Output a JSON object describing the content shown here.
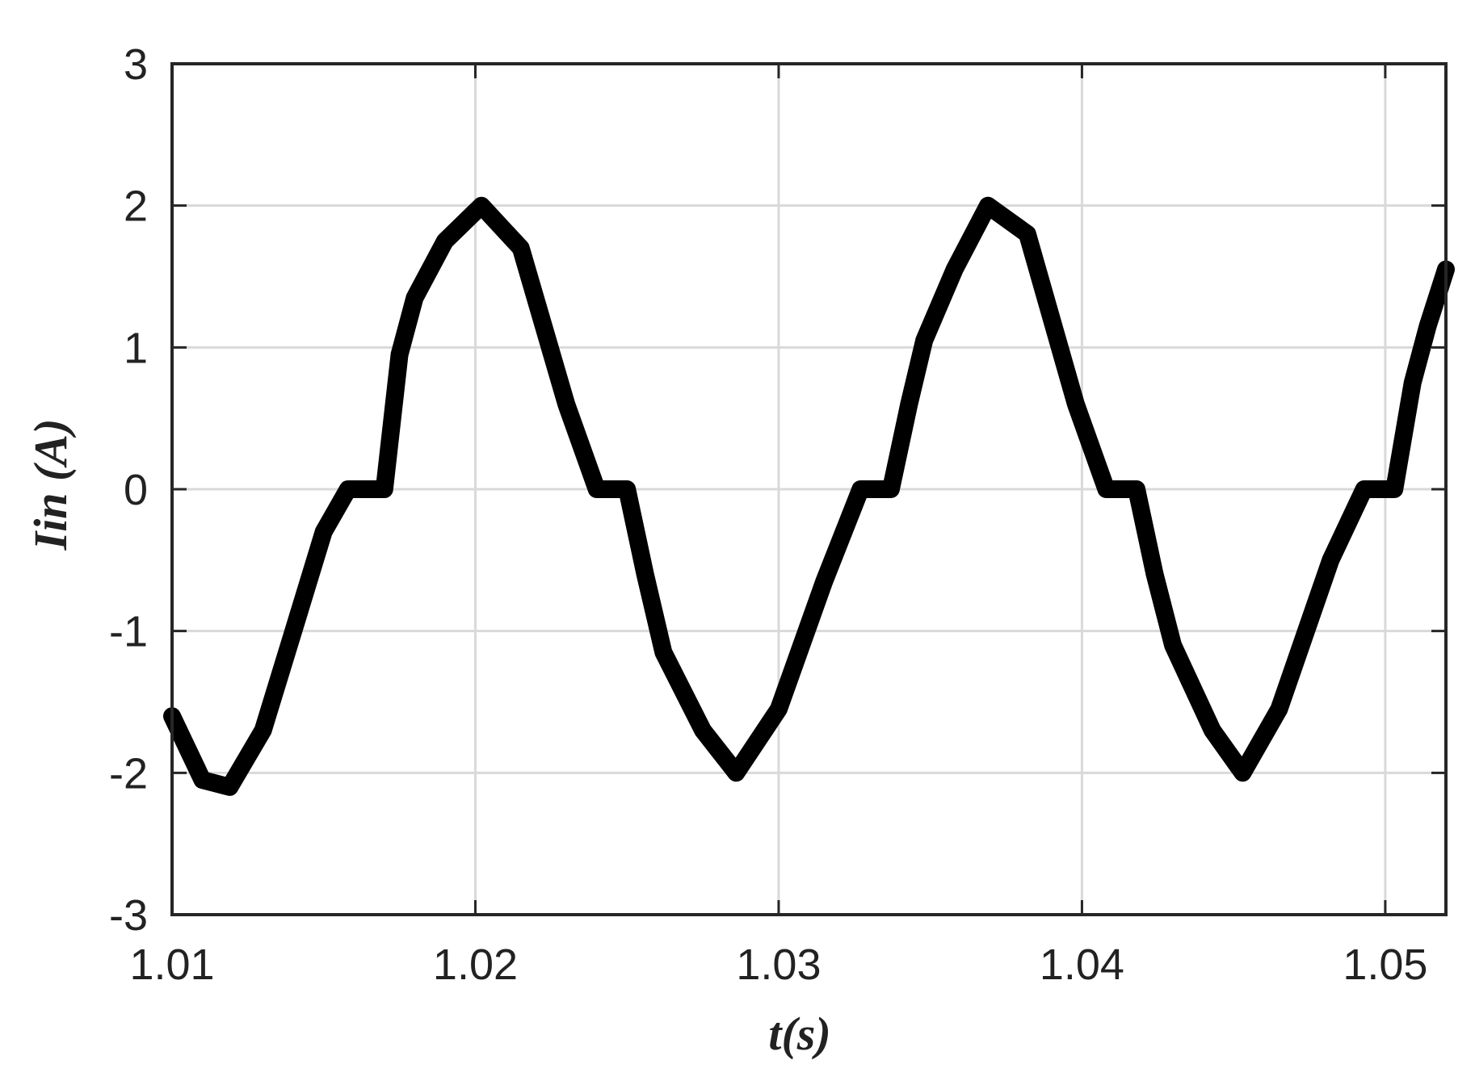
{
  "colors": {
    "background": "#ffffff",
    "trace": "#000000",
    "grid": "#d9d9d9",
    "axes": "#262626",
    "text": "#222222"
  },
  "chart_data": {
    "type": "line",
    "title": "",
    "xlabel": "t(s)",
    "ylabel": "Iin (A)",
    "xlim": [
      1.01,
      1.052
    ],
    "ylim": [
      -3,
      3
    ],
    "grid": true,
    "legend": "none",
    "x_ticks": [
      1.01,
      1.02,
      1.03,
      1.04,
      1.05
    ],
    "x_tick_labels": [
      "1.01",
      "1.02",
      "1.03",
      "1.04",
      "1.05"
    ],
    "y_ticks": [
      3,
      2,
      1,
      0,
      -1,
      -2,
      -3
    ],
    "y_tick_labels": [
      "3",
      "2",
      "1",
      "0",
      "-1",
      "-2",
      "-3"
    ],
    "series": [
      {
        "style": "thick black band (switching ripple ~0.25 A), dead zone near 0",
        "x": [
          1.01,
          1.011,
          1.0119,
          1.013,
          1.014,
          1.015,
          1.0158,
          1.0163,
          1.017,
          1.0175,
          1.018,
          1.019,
          1.0202,
          1.0215,
          1.023,
          1.024,
          1.0245,
          1.025,
          1.0256,
          1.0262,
          1.0275,
          1.0286,
          1.03,
          1.0315,
          1.0327,
          1.0331,
          1.0337,
          1.0343,
          1.0348,
          1.0358,
          1.0369,
          1.0382,
          1.0398,
          1.0408,
          1.0412,
          1.0418,
          1.0424,
          1.043,
          1.0443,
          1.0453,
          1.0465,
          1.0482,
          1.0493,
          1.0497,
          1.0503,
          1.0509,
          1.0514,
          1.052
        ],
        "y": [
          -1.6,
          -2.05,
          -2.1,
          -1.7,
          -1.0,
          -0.3,
          0.0,
          0.0,
          0.0,
          0.95,
          1.35,
          1.75,
          2.0,
          1.7,
          0.6,
          0.0,
          0.0,
          0.0,
          -0.6,
          -1.15,
          -1.7,
          -2.0,
          -1.55,
          -0.65,
          0.0,
          0.0,
          0.0,
          0.6,
          1.05,
          1.55,
          2.0,
          1.8,
          0.6,
          0.0,
          0.0,
          0.0,
          -0.6,
          -1.1,
          -1.7,
          -2.0,
          -1.55,
          -0.5,
          0.0,
          0.0,
          0.0,
          0.75,
          1.15,
          1.55
        ]
      }
    ]
  }
}
